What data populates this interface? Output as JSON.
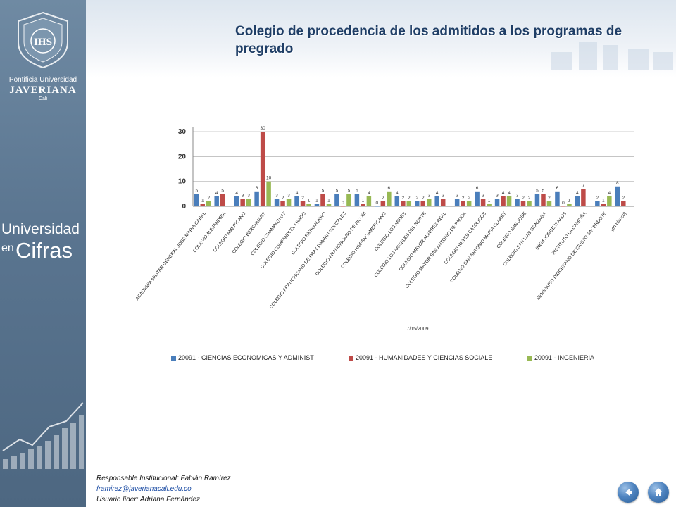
{
  "sidebar": {
    "university_line1": "Pontificia Universidad",
    "university_line2": "JAVERIANA",
    "university_line3": "Cali",
    "crest_text": "IHS",
    "cifras_line1": "Universidad",
    "cifras_line2a": "en",
    "cifras_line2b": "Cifras"
  },
  "header": {
    "title": "Colegio  de procedencia de  los  admitidos a los programas de pregrado"
  },
  "footer": {
    "responsible": "Responsable  Institucional: Fabián Ramírez",
    "email": "framirez@javerianacali.edu.co",
    "leader": "Usuario líder: Adriana Fernández"
  },
  "nav": {
    "back_icon": "back-arrow-icon",
    "home_icon": "home-icon"
  },
  "chart_data": {
    "type": "bar",
    "date_label": "7/15/2009",
    "ylim": [
      0,
      32
    ],
    "yticks": [
      0,
      10,
      20,
      30
    ],
    "grid": true,
    "legend_position": "bottom",
    "categories": [
      "ACADEMIA MILITAR GENERAL JOSE MARIA CABAL",
      "COLEGIO ALEJANDRIA",
      "COLEGIO AMERICANO",
      "COLEGIO BERCHMANS",
      "COLEGIO CHAMPAGNAT",
      "COLEGIO COMFANDI EL PRADO",
      "COLEGIO EXTRANJERO",
      "COLEGIO FRANCISCANO DE FRAY DAMIAN GONZALEZ",
      "COLEGIO FRANCISCANO DE PIO XII",
      "COLEGIO HISPANOAMERICANO",
      "COLEGIO LOS ANDES",
      "COLEGIO LOS ANGELES DEL NORTE",
      "COLEGIO MAYOR ALFEREZ REAL",
      "COLEGIO MAYOR SAN ANTONIO DE PADUA",
      "COLEGIO REYES CATOLICOS",
      "COLEGIO SAN ANTONIO MARIA CLARET",
      "COLEGIO SAN JOSE",
      "COLEGIO SAN LUIS GONZAGA",
      "INEM JORGE ISAACS",
      "INSTITUTO LA CAMPIÑA",
      "SEMINARIO DIOCESANO DE CRISTO SACERDOTE",
      "(en blanco)"
    ],
    "series": [
      {
        "name": "20091 - CIENCIAS ECONOMICAS Y ADMINIST",
        "color": "#4a7ebb",
        "values": [
          5,
          4,
          4,
          6,
          3,
          4,
          1,
          5,
          5,
          0,
          4,
          2,
          4,
          3,
          6,
          3,
          3,
          5,
          6,
          4,
          2,
          8
        ]
      },
      {
        "name": "20091 - HUMANIDADES Y CIENCIAS SOCIALE",
        "color": "#be4b48",
        "values": [
          1,
          5,
          3,
          30,
          2,
          2,
          5,
          0,
          1,
          2,
          2,
          2,
          3,
          2,
          3,
          4,
          2,
          5,
          0,
          7,
          1,
          2
        ]
      },
      {
        "name": "20091 - INGENIERIA",
        "color": "#98b954",
        "values": [
          2,
          null,
          3,
          10,
          3,
          1,
          1,
          5,
          4,
          6,
          2,
          3,
          null,
          2,
          1,
          4,
          2,
          2,
          1,
          null,
          4,
          null
        ]
      }
    ]
  }
}
